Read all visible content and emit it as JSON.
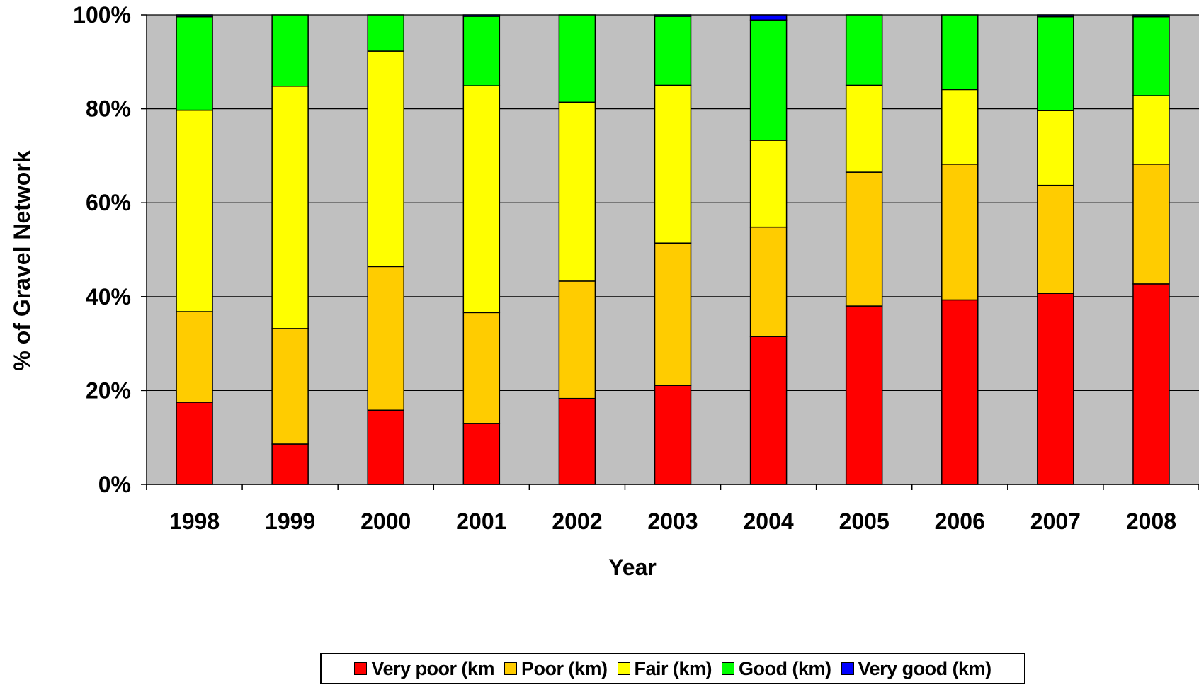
{
  "chart_data": {
    "type": "bar",
    "stacked": true,
    "percent": true,
    "xlabel": "Year",
    "ylabel": "% of Gravel Network",
    "categories": [
      "1998",
      "1999",
      "2000",
      "2001",
      "2002",
      "2003",
      "2004",
      "2005",
      "2006",
      "2007",
      "2008"
    ],
    "ylim": [
      0,
      100
    ],
    "yticks": [
      "0%",
      "20%",
      "40%",
      "60%",
      "80%",
      "100%"
    ],
    "grid": true,
    "legend_position": "bottom",
    "series": [
      {
        "name": "Very poor (km",
        "color": "#ff0000",
        "values": [
          17.5,
          8.6,
          15.8,
          13.0,
          18.3,
          21.1,
          31.5,
          38.0,
          39.3,
          40.7,
          42.7
        ]
      },
      {
        "name": "Poor (km)",
        "color": "#ffcc00",
        "values": [
          19.3,
          24.6,
          30.6,
          23.6,
          25.0,
          30.3,
          23.3,
          28.5,
          28.9,
          23.0,
          25.5
        ]
      },
      {
        "name": "Fair (km)",
        "color": "#ffff00",
        "values": [
          42.9,
          51.6,
          45.9,
          48.3,
          38.1,
          33.6,
          18.5,
          18.5,
          15.9,
          15.9,
          14.6
        ]
      },
      {
        "name": "Good (km)",
        "color": "#00ff00",
        "values": [
          19.9,
          15.2,
          7.7,
          14.8,
          18.6,
          14.7,
          25.6,
          15.0,
          15.9,
          20.0,
          16.8
        ]
      },
      {
        "name": "Very good (km)",
        "color": "#0000ff",
        "values": [
          0.4,
          0,
          0,
          0.3,
          0,
          0.3,
          1.1,
          0,
          0,
          0.4,
          0.4
        ]
      }
    ],
    "plot_background": "#c0c0c0"
  }
}
